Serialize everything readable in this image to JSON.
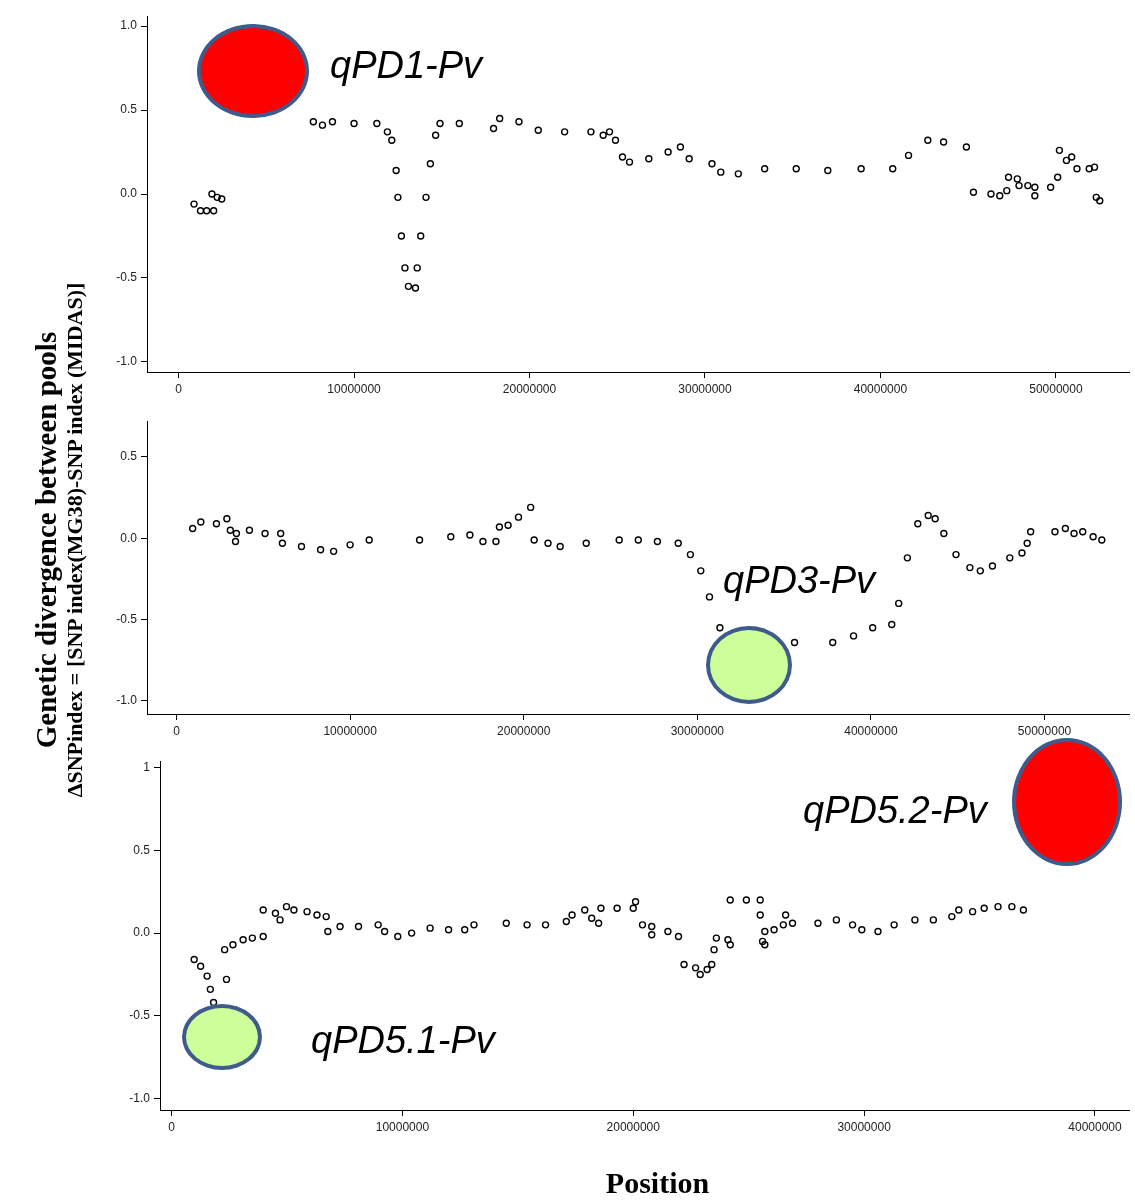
{
  "chart_data": [
    {
      "type": "scatter",
      "marker": "circle",
      "color": "#000000",
      "grid": false,
      "xlim": [
        -1800000,
        54200000
      ],
      "xticks": [
        0,
        10000000,
        20000000,
        30000000,
        40000000,
        50000000
      ],
      "ylim": [
        -1.06,
        1.06
      ],
      "yticks": [
        {
          "value": -1,
          "label": "-1.0"
        },
        -0.5,
        {
          "value": 0,
          "label": "0.0"
        },
        0.5,
        {
          "value": 1,
          "label": "1.0"
        }
      ],
      "annotations": [
        "qPD1-Pv"
      ],
      "x": [
        880000,
        1250000,
        1600000,
        2000000,
        1900000,
        2200000,
        2460000,
        6750000,
        7680000,
        8200000,
        8770000,
        10000000,
        11300000,
        11900000,
        12150000,
        12400000,
        12500000,
        12700000,
        12900000,
        13100000,
        13500000,
        13600000,
        13800000,
        14100000,
        14350000,
        14650000,
        14900000,
        16000000,
        17950000,
        18300000,
        19400000,
        20500000,
        22000000,
        23500000,
        24200000,
        24560000,
        24900000,
        25300000,
        25700000,
        26800000,
        27900000,
        28600000,
        29100000,
        30400000,
        30900000,
        31900000,
        33400000,
        35200000,
        37000000,
        38900000,
        40700000,
        41600000,
        42700000,
        43600000,
        44900000,
        45300000,
        46300000,
        46800000,
        47200000,
        47300000,
        47800000,
        47900000,
        48400000,
        48800000,
        48800000,
        49700000,
        50100000,
        50200000,
        50600000,
        50900000,
        51200000,
        51900000,
        52200000,
        52300000,
        52500000
      ],
      "values": [
        -0.06,
        -0.1,
        -0.1,
        -0.1,
        0,
        -0.02,
        -0.03,
        null,
        0.43,
        0.41,
        0.43,
        0.42,
        0.42,
        0.37,
        0.32,
        0.14,
        -0.02,
        -0.25,
        -0.44,
        -0.55,
        -0.56,
        -0.44,
        -0.25,
        -0.02,
        0.18,
        0.35,
        0.42,
        0.42,
        0.39,
        0.45,
        0.43,
        0.38,
        0.37,
        0.37,
        0.35,
        0.37,
        0.32,
        0.22,
        0.19,
        0.21,
        0.25,
        0.28,
        0.21,
        0.18,
        0.13,
        0.12,
        0.15,
        0.15,
        0.14,
        0.15,
        0.15,
        0.23,
        0.32,
        0.31,
        0.28,
        0.01,
        0,
        -0.01,
        0.02,
        0.1,
        0.09,
        0.05,
        0.05,
        -0.01,
        0.04,
        0.04,
        0.1,
        0.26,
        0.2,
        0.22,
        0.15,
        0.15,
        0.16,
        -0.02,
        -0.04
      ]
    },
    {
      "type": "scatter",
      "marker": "circle",
      "color": "#000000",
      "grid": false,
      "ylabel": "Genetic divergence between pools\nΔSNPindex = [SNP index(MG38)-SNP index (MIDAS)]",
      "xlim": [
        -1700000,
        54900000
      ],
      "xticks": [
        0,
        10000000,
        20000000,
        30000000,
        40000000,
        50000000
      ],
      "ylim": [
        -1.08,
        0.72
      ],
      "yticks": [
        {
          "value": -1,
          "label": "-1.0"
        },
        -0.5,
        {
          "value": 0,
          "label": "0.0"
        },
        0.5
      ],
      "annotations": [
        "qPD3-Pv"
      ],
      "x": [
        930000,
        1400000,
        2300000,
        2900000,
        3100000,
        3400000,
        3450000,
        4200000,
        5100000,
        6000000,
        6100000,
        7200000,
        8300000,
        9050000,
        10000000,
        11100000,
        14000000,
        15800000,
        16900000,
        17650000,
        18400000,
        18600000,
        19100000,
        19700000,
        20400000,
        20600000,
        21400000,
        22100000,
        23600000,
        25500000,
        26600000,
        27700000,
        28900000,
        29600000,
        30200000,
        30700000,
        31300000,
        31500000,
        35600000,
        37800000,
        39000000,
        40100000,
        41200000,
        41600000,
        42100000,
        42700000,
        43300000,
        43700000,
        44200000,
        44900000,
        45700000,
        46300000,
        47000000,
        48000000,
        48700000,
        49000000,
        49200000,
        50600000,
        51200000,
        51700000,
        52200000,
        52800000,
        53300000
      ],
      "values": [
        0.06,
        0.1,
        0.09,
        0.12,
        0.05,
        -0.02,
        0.03,
        0.05,
        0.03,
        0.03,
        -0.03,
        -0.05,
        -0.07,
        -0.08,
        -0.04,
        -0.01,
        -0.01,
        0.01,
        0.02,
        -0.02,
        -0.02,
        0.07,
        0.08,
        0.13,
        0.19,
        -0.01,
        -0.03,
        -0.05,
        -0.03,
        -0.01,
        -0.01,
        -0.02,
        -0.03,
        -0.1,
        -0.2,
        -0.36,
        -0.55,
        null,
        -0.64,
        -0.64,
        -0.6,
        -0.55,
        -0.53,
        -0.4,
        -0.12,
        0.09,
        0.14,
        0.12,
        0.03,
        -0.1,
        -0.18,
        -0.2,
        -0.17,
        -0.12,
        -0.09,
        -0.03,
        0.04,
        0.04,
        0.06,
        0.03,
        0.04,
        0.01,
        -0.01
      ]
    },
    {
      "type": "scatter",
      "marker": "circle",
      "color": "#000000",
      "grid": false,
      "xlabel": "Position",
      "xlim": [
        -500000,
        41500000
      ],
      "xticks": [
        0,
        10000000,
        20000000,
        30000000,
        40000000
      ],
      "ylim": [
        -1.07,
        1.04
      ],
      "yticks": [
        {
          "value": -1,
          "label": "-1.0"
        },
        -0.5,
        {
          "value": 0,
          "label": "0.0"
        },
        0.5,
        1
      ],
      "annotations": [
        "qPD5.2-Pv",
        "qPD5.1-Pv"
      ],
      "x": [
        980000,
        1260000,
        1540000,
        1680000,
        1820000,
        2380000,
        2300000,
        2660000,
        3100000,
        3500000,
        3970000,
        3970000,
        4500000,
        4700000,
        4980000,
        5300000,
        5870000,
        6300000,
        6700000,
        6770000,
        7300000,
        8100000,
        8950000,
        9230000,
        9800000,
        10400000,
        11200000,
        12000000,
        12700000,
        13100000,
        14500000,
        15400000,
        16200000,
        17100000,
        17350000,
        17900000,
        18200000,
        18500000,
        18600000,
        19300000,
        20000000,
        20100000,
        20400000,
        20800000,
        20800000,
        21500000,
        21960000,
        22200000,
        22700000,
        22900000,
        23200000,
        23400000,
        23500000,
        23600000,
        24100000,
        24200000,
        24200000,
        24900000,
        25500000,
        25500000,
        25600000,
        25700000,
        25700000,
        26100000,
        26500000,
        26600000,
        26900000,
        28000000,
        28800000,
        29500000,
        29900000,
        30600000,
        31300000,
        32200000,
        33000000,
        33800000,
        34100000,
        34700000,
        35200000,
        35800000,
        36400000,
        36900000
      ],
      "values": [
        -0.16,
        -0.2,
        -0.26,
        -0.34,
        -0.42,
        -0.28,
        -0.1,
        -0.07,
        -0.04,
        -0.03,
        -0.02,
        0.14,
        0.12,
        0.08,
        0.16,
        0.14,
        0.13,
        0.11,
        0.1,
        0.01,
        0.04,
        0.04,
        0.05,
        0.01,
        -0.02,
        0,
        0.03,
        0.02,
        0.02,
        0.05,
        0.06,
        0.05,
        0.05,
        0.07,
        0.11,
        0.14,
        0.09,
        0.06,
        0.15,
        0.15,
        0.15,
        0.19,
        0.05,
        0.04,
        -0.01,
        0.01,
        -0.02,
        -0.19,
        -0.21,
        -0.25,
        -0.22,
        -0.19,
        -0.1,
        -0.03,
        -0.04,
        -0.07,
        0.2,
        0.2,
        0.2,
        0.11,
        -0.05,
        -0.07,
        0.01,
        0.02,
        0.05,
        0.11,
        0.06,
        0.06,
        0.08,
        0.05,
        0.02,
        0.01,
        0.05,
        0.08,
        0.08,
        0.1,
        0.14,
        0.13,
        0.15,
        0.16,
        0.16,
        0.14
      ]
    }
  ]
}
